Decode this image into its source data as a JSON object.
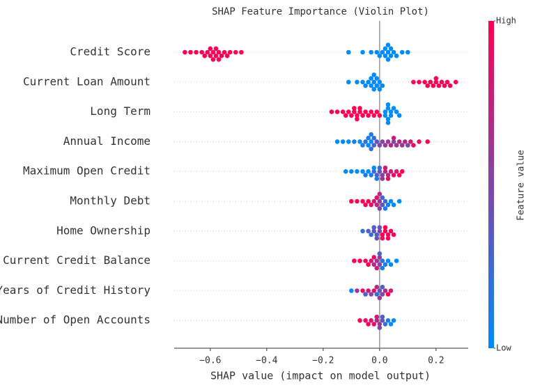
{
  "chart_data": {
    "type": "beeswarm",
    "title": "SHAP Feature Importance (Violin Plot)",
    "xlabel": "SHAP value (impact on model output)",
    "colorbar_label": "Feature value",
    "xlim": [
      -0.728,
      0.314
    ],
    "xticks": [
      {
        "value": -0.6,
        "label": "−0.6"
      },
      {
        "value": -0.4,
        "label": "−0.4"
      },
      {
        "value": -0.2,
        "label": "−0.2"
      },
      {
        "value": 0.0,
        "label": "0.0"
      },
      {
        "value": 0.2,
        "label": "0.2"
      }
    ],
    "clim": [
      0,
      1
    ],
    "cticks": [
      {
        "value": 0,
        "label": "Low"
      },
      {
        "value": 1,
        "label": "High"
      }
    ],
    "cmap": [
      "#008bfb",
      "#ff0052"
    ],
    "features": [
      {
        "name": "Credit Score",
        "shap": [
          -0.69,
          -0.67,
          -0.65,
          -0.63,
          -0.62,
          -0.61,
          -0.6,
          -0.6,
          -0.59,
          -0.59,
          -0.58,
          -0.58,
          -0.57,
          -0.57,
          -0.56,
          -0.55,
          -0.54,
          -0.53,
          -0.51,
          -0.49,
          -0.11,
          -0.06,
          -0.03,
          -0.01,
          0.0,
          0.01,
          0.02,
          0.02,
          0.03,
          0.03,
          0.03,
          0.04,
          0.04,
          0.05,
          0.06,
          0.08,
          0.1
        ],
        "feature": [
          1,
          1,
          1,
          1,
          1,
          1,
          1,
          1,
          1,
          1,
          1,
          1,
          1,
          1,
          1,
          1,
          1,
          1,
          1,
          1,
          0,
          0,
          0,
          0,
          0,
          0,
          0,
          0,
          0,
          0,
          0,
          0,
          0,
          0,
          0,
          0,
          0
        ]
      },
      {
        "name": "Current Loan Amount",
        "shap": [
          -0.11,
          -0.08,
          -0.06,
          -0.05,
          -0.04,
          -0.03,
          -0.03,
          -0.02,
          -0.02,
          -0.02,
          -0.01,
          -0.01,
          0.0,
          0.0,
          0.01,
          0.12,
          0.14,
          0.16,
          0.17,
          0.18,
          0.19,
          0.2,
          0.2,
          0.21,
          0.22,
          0.23,
          0.24,
          0.25,
          0.27
        ],
        "feature": [
          0,
          0,
          0,
          0,
          0,
          0,
          0,
          0,
          0,
          0,
          0,
          0,
          0,
          0,
          0,
          1,
          1,
          1,
          1,
          1,
          1,
          1,
          1,
          1,
          1,
          1,
          1,
          1,
          1
        ]
      },
      {
        "name": "Long Term",
        "shap": [
          -0.17,
          -0.15,
          -0.13,
          -0.12,
          -0.11,
          -0.1,
          -0.09,
          -0.09,
          -0.08,
          -0.08,
          -0.07,
          -0.07,
          -0.06,
          -0.05,
          -0.04,
          -0.03,
          -0.02,
          -0.01,
          0.0,
          0.02,
          0.02,
          0.03,
          0.03,
          0.03,
          0.03,
          0.04,
          0.04,
          0.05,
          0.06,
          0.07
        ],
        "feature": [
          1,
          1,
          1,
          1,
          1,
          1,
          1,
          1,
          1,
          1,
          1,
          1,
          1,
          1,
          1,
          1,
          1,
          1,
          1,
          0,
          0,
          0,
          0,
          0,
          0,
          0,
          0,
          0,
          0,
          0
        ]
      },
      {
        "name": "Annual Income",
        "shap": [
          -0.15,
          -0.13,
          -0.11,
          -0.09,
          -0.07,
          -0.06,
          -0.05,
          -0.04,
          -0.04,
          -0.03,
          -0.03,
          -0.03,
          -0.02,
          -0.02,
          -0.01,
          0.0,
          0.01,
          0.02,
          0.03,
          0.04,
          0.05,
          0.05,
          0.06,
          0.07,
          0.08,
          0.09,
          0.1,
          0.11,
          0.12,
          0.14,
          0.17
        ],
        "feature": [
          0,
          0,
          0,
          0.1,
          0,
          0.1,
          0.2,
          0,
          0.1,
          0,
          0.2,
          0.1,
          0.3,
          0.2,
          0.4,
          0.5,
          0.5,
          0.6,
          0.6,
          0.7,
          0.5,
          0.8,
          0.6,
          0.7,
          0.6,
          0.7,
          0.5,
          0.8,
          0.9,
          0.9,
          1
        ]
      },
      {
        "name": "Maximum Open Credit",
        "shap": [
          -0.12,
          -0.1,
          -0.08,
          -0.06,
          -0.05,
          -0.04,
          -0.03,
          -0.02,
          -0.02,
          -0.01,
          -0.01,
          0.0,
          0.0,
          0.01,
          0.01,
          0.02,
          0.02,
          0.03,
          0.03,
          0.04,
          0.05,
          0.06,
          0.07,
          0.08
        ],
        "feature": [
          0,
          0,
          0,
          0,
          0.1,
          0,
          0.1,
          0.2,
          0,
          0.3,
          0.1,
          0.4,
          0.2,
          0.5,
          0.6,
          0.7,
          0.8,
          0.7,
          0.9,
          0.8,
          0.9,
          0.8,
          1,
          1
        ]
      },
      {
        "name": "Monthly Debt",
        "shap": [
          -0.1,
          -0.08,
          -0.06,
          -0.05,
          -0.04,
          -0.03,
          -0.02,
          -0.01,
          -0.01,
          0.0,
          0.0,
          0.0,
          0.01,
          0.01,
          0.02,
          0.02,
          0.03,
          0.04,
          0.05,
          0.07
        ],
        "feature": [
          1,
          1,
          1,
          0.9,
          1,
          0.9,
          0.8,
          0.7,
          0.9,
          0.6,
          0.5,
          0.7,
          0.4,
          0.3,
          0.2,
          0.1,
          0.1,
          0,
          0,
          0
        ]
      },
      {
        "name": "Home Ownership",
        "shap": [
          -0.06,
          -0.04,
          -0.03,
          -0.02,
          -0.02,
          -0.01,
          -0.01,
          0.0,
          0.0,
          0.01,
          0.01,
          0.02,
          0.02,
          0.03,
          0.03,
          0.04,
          0.05
        ],
        "feature": [
          0.2,
          0.3,
          0.2,
          0.4,
          0.3,
          0.3,
          0.4,
          0.5,
          0.4,
          1,
          0.9,
          1,
          1,
          0.9,
          1,
          1,
          1
        ]
      },
      {
        "name": "Current Credit Balance",
        "shap": [
          -0.09,
          -0.07,
          -0.05,
          -0.04,
          -0.03,
          -0.02,
          -0.02,
          -0.01,
          -0.01,
          0.0,
          0.0,
          0.0,
          0.01,
          0.01,
          0.02,
          0.03,
          0.04,
          0.06
        ],
        "feature": [
          1,
          1,
          0.9,
          1,
          0.8,
          0.7,
          0.9,
          0.6,
          0.8,
          0.5,
          0.6,
          0.3,
          0.2,
          0.1,
          0.1,
          0,
          0,
          0
        ]
      },
      {
        "name": "Years of Credit History",
        "shap": [
          -0.1,
          -0.08,
          -0.06,
          -0.05,
          -0.04,
          -0.03,
          -0.02,
          -0.01,
          -0.01,
          0.0,
          0.0,
          0.01,
          0.01,
          0.02,
          0.03,
          0.04
        ],
        "feature": [
          0,
          0.6,
          0.9,
          0.3,
          0.8,
          0.5,
          0.9,
          0.2,
          0.7,
          0.4,
          0.6,
          0.5,
          0.3,
          0.7,
          1,
          0.8
        ]
      },
      {
        "name": "Number of Open Accounts",
        "shap": [
          -0.07,
          -0.05,
          -0.04,
          -0.03,
          -0.02,
          -0.01,
          -0.01,
          0.0,
          0.0,
          0.01,
          0.01,
          0.02,
          0.03,
          0.04,
          0.05
        ],
        "feature": [
          1,
          0.9,
          1,
          0.8,
          0.9,
          0.7,
          0.8,
          0.6,
          0.5,
          0.4,
          0.3,
          0.2,
          0.1,
          0,
          0
        ]
      }
    ]
  }
}
